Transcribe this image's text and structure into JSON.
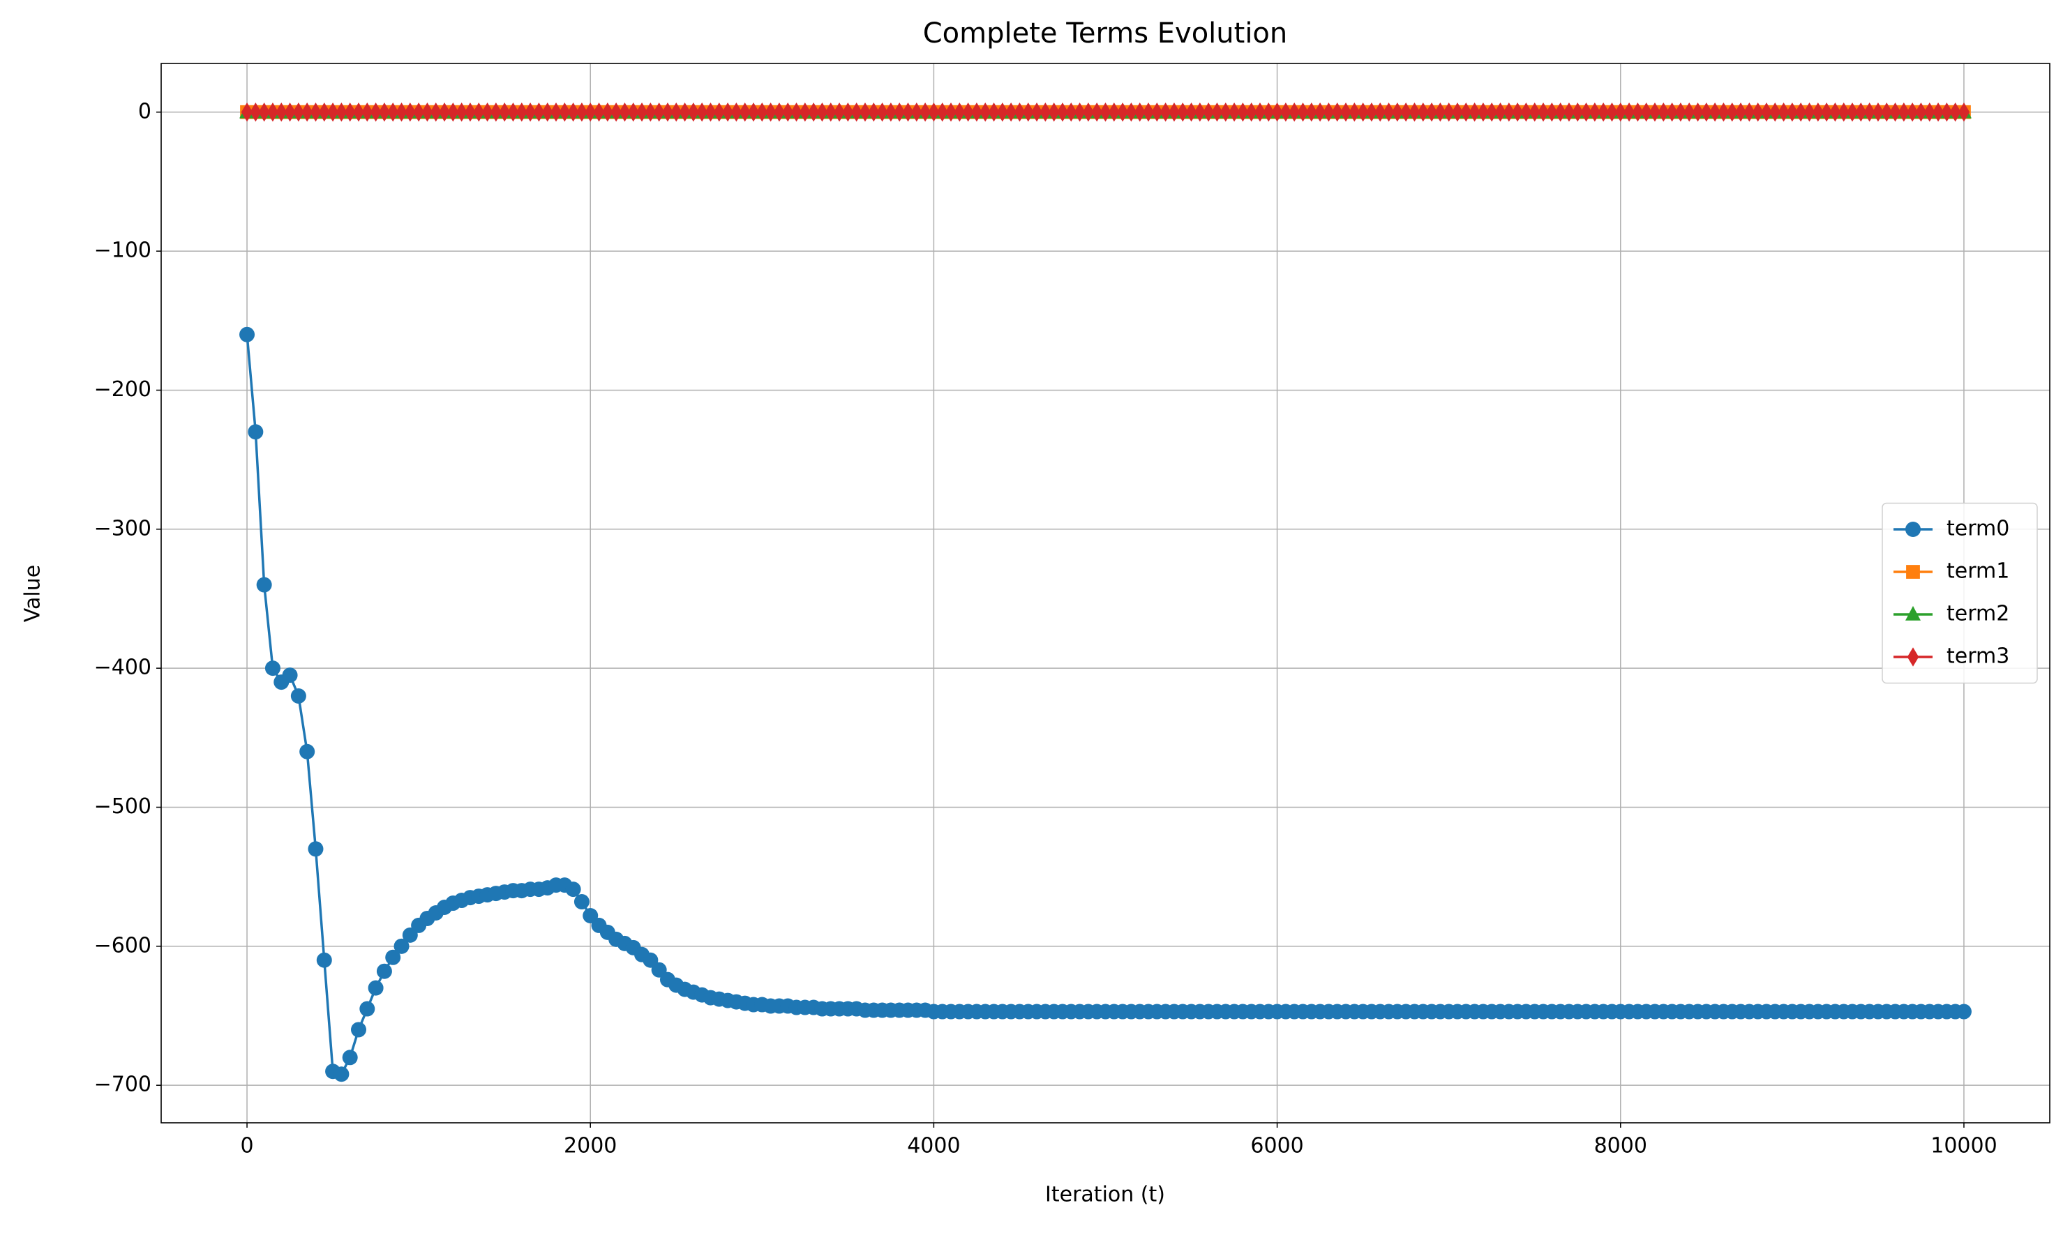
{
  "chart_data": {
    "type": "line",
    "title": "Complete Terms Evolution",
    "xlabel": "Iteration (t)",
    "ylabel": "Value",
    "grid": true,
    "legend": "center right",
    "xlim": [
      -500,
      10500
    ],
    "ylim": [
      -727,
      35
    ],
    "xticks": [
      0,
      2000,
      4000,
      6000,
      8000,
      10000
    ],
    "yticks": [
      {
        "value": -700,
        "label": "−700"
      },
      {
        "value": -600,
        "label": "−600"
      },
      {
        "value": -500,
        "label": "−500"
      },
      {
        "value": -400,
        "label": "−400"
      },
      {
        "value": -300,
        "label": "−300"
      },
      {
        "value": -200,
        "label": "−200"
      },
      {
        "value": -100,
        "label": "−100"
      },
      0
    ],
    "x": [
      0,
      50,
      100,
      150,
      200,
      250,
      300,
      350,
      400,
      450,
      500,
      550,
      600,
      650,
      700,
      750,
      800,
      850,
      900,
      950,
      1000,
      1050,
      1100,
      1150,
      1200,
      1250,
      1300,
      1350,
      1400,
      1450,
      1500,
      1550,
      1600,
      1650,
      1700,
      1750,
      1800,
      1850,
      1900,
      1950,
      2000,
      2050,
      2100,
      2150,
      2200,
      2250,
      2300,
      2350,
      2400,
      2450,
      2500,
      2550,
      2600,
      2650,
      2700,
      2750,
      2800,
      2850,
      2900,
      2950,
      3000,
      3050,
      3100,
      3150,
      3200,
      3250,
      3300,
      3350,
      3400,
      3450,
      3500,
      3550,
      3600,
      3650,
      3700,
      3750,
      3800,
      3850,
      3900,
      3950,
      4000,
      4050,
      4100,
      4150,
      4200,
      4250,
      4300,
      4350,
      4400,
      4450,
      4500,
      4550,
      4600,
      4650,
      4700,
      4750,
      4800,
      4850,
      4900,
      4950,
      5000,
      5050,
      5100,
      5150,
      5200,
      5250,
      5300,
      5350,
      5400,
      5450,
      5500,
      5550,
      5600,
      5650,
      5700,
      5750,
      5800,
      5850,
      5900,
      5950,
      6000,
      6050,
      6100,
      6150,
      6200,
      6250,
      6300,
      6350,
      6400,
      6450,
      6500,
      6550,
      6600,
      6650,
      6700,
      6750,
      6800,
      6850,
      6900,
      6950,
      7000,
      7050,
      7100,
      7150,
      7200,
      7250,
      7300,
      7350,
      7400,
      7450,
      7500,
      7550,
      7600,
      7650,
      7700,
      7750,
      7800,
      7850,
      7900,
      7950,
      8000,
      8050,
      8100,
      8150,
      8200,
      8250,
      8300,
      8350,
      8400,
      8450,
      8500,
      8550,
      8600,
      8650,
      8700,
      8750,
      8800,
      8850,
      8900,
      8950,
      9000,
      9050,
      9100,
      9150,
      9200,
      9250,
      9300,
      9350,
      9400,
      9450,
      9500,
      9550,
      9600,
      9650,
      9700,
      9750,
      9800,
      9850,
      9900,
      9950,
      10000
    ],
    "series": [
      {
        "name": "term0",
        "color": "#1f77b4",
        "marker": "circle",
        "values": [
          -160,
          -230,
          -340,
          -400,
          -410,
          -405,
          -420,
          -460,
          -530,
          -610,
          -690,
          -692,
          -680,
          -660,
          -645,
          -630,
          -618,
          -608,
          -600,
          -592,
          -585,
          -580,
          -576,
          -572,
          -569,
          -567,
          -565,
          -564,
          -563,
          -562,
          -561,
          -560,
          -560,
          -559,
          -559,
          -558,
          -556,
          -556,
          -559,
          -568,
          -578,
          -585,
          -590,
          -595,
          -598,
          -601,
          -606,
          -610,
          -617,
          -624,
          -628,
          -631,
          -633,
          -635,
          -637,
          -638,
          -639,
          -640,
          -641,
          -642,
          -642,
          -643,
          -643,
          -643,
          -644,
          -644,
          -644,
          -645,
          -645,
          -645,
          -645,
          -645,
          -646,
          -646,
          -646,
          -646,
          -646,
          -646,
          -646,
          -646,
          -647,
          -647,
          -647,
          -647,
          -647,
          -647,
          -647,
          -647,
          -647,
          -647,
          -647,
          -647,
          -647,
          -647,
          -647,
          -647,
          -647,
          -647,
          -647,
          -647,
          -647,
          -647,
          -647,
          -647,
          -647,
          -647,
          -647,
          -647,
          -647,
          -647,
          -647,
          -647,
          -647,
          -647,
          -647,
          -647,
          -647,
          -647,
          -647,
          -647,
          -647,
          -647,
          -647,
          -647,
          -647,
          -647,
          -647,
          -647,
          -647,
          -647,
          -647,
          -647,
          -647,
          -647,
          -647,
          -647,
          -647,
          -647,
          -647,
          -647,
          -647,
          -647,
          -647,
          -647,
          -647,
          -647,
          -647,
          -647,
          -647,
          -647,
          -647,
          -647,
          -647,
          -647,
          -647,
          -647,
          -647,
          -647,
          -647,
          -647,
          -647,
          -647,
          -647,
          -647,
          -647,
          -647,
          -647,
          -647,
          -647,
          -647,
          -647,
          -647,
          -647,
          -647,
          -647,
          -647,
          -647,
          -647,
          -647,
          -647,
          -647,
          -647,
          -647,
          -647,
          -647,
          -647,
          -647,
          -647,
          -647,
          -647,
          -647,
          -647,
          -647,
          -647,
          -647,
          -647,
          -647,
          -647,
          -647,
          -647,
          -647
        ]
      },
      {
        "name": "term1",
        "color": "#ff7f0e",
        "marker": "square",
        "values": [
          0,
          0,
          0,
          0,
          0,
          0,
          0,
          0,
          0,
          0,
          0,
          0,
          0,
          0,
          0,
          0,
          0,
          0,
          0,
          0,
          0,
          0,
          0,
          0,
          0,
          0,
          0,
          0,
          0,
          0,
          0,
          0,
          0,
          0,
          0,
          0,
          0,
          0,
          0,
          0,
          0,
          0,
          0,
          0,
          0,
          0,
          0,
          0,
          0,
          0,
          0,
          0,
          0,
          0,
          0,
          0,
          0,
          0,
          0,
          0,
          0,
          0,
          0,
          0,
          0,
          0,
          0,
          0,
          0,
          0,
          0,
          0,
          0,
          0,
          0,
          0,
          0,
          0,
          0,
          0,
          0,
          0,
          0,
          0,
          0,
          0,
          0,
          0,
          0,
          0,
          0,
          0,
          0,
          0,
          0,
          0,
          0,
          0,
          0,
          0,
          0,
          0,
          0,
          0,
          0,
          0,
          0,
          0,
          0,
          0,
          0,
          0,
          0,
          0,
          0,
          0,
          0,
          0,
          0,
          0,
          0,
          0,
          0,
          0,
          0,
          0,
          0,
          0,
          0,
          0,
          0,
          0,
          0,
          0,
          0,
          0,
          0,
          0,
          0,
          0,
          0,
          0,
          0,
          0,
          0,
          0,
          0,
          0,
          0,
          0,
          0,
          0,
          0,
          0,
          0,
          0,
          0,
          0,
          0,
          0,
          0,
          0,
          0,
          0,
          0,
          0,
          0,
          0,
          0,
          0,
          0,
          0,
          0,
          0,
          0,
          0,
          0,
          0,
          0,
          0,
          0,
          0,
          0,
          0,
          0,
          0,
          0,
          0,
          0,
          0,
          0,
          0,
          0,
          0,
          0,
          0,
          0,
          0,
          0,
          0,
          0
        ]
      },
      {
        "name": "term2",
        "color": "#2ca02c",
        "marker": "triangle",
        "values": [
          0,
          0,
          0,
          0,
          0,
          0,
          0,
          0,
          0,
          0,
          0,
          0,
          0,
          0,
          0,
          0,
          0,
          0,
          0,
          0,
          0,
          0,
          0,
          0,
          0,
          0,
          0,
          0,
          0,
          0,
          0,
          0,
          0,
          0,
          0,
          0,
          0,
          0,
          0,
          0,
          0,
          0,
          0,
          0,
          0,
          0,
          0,
          0,
          0,
          0,
          0,
          0,
          0,
          0,
          0,
          0,
          0,
          0,
          0,
          0,
          0,
          0,
          0,
          0,
          0,
          0,
          0,
          0,
          0,
          0,
          0,
          0,
          0,
          0,
          0,
          0,
          0,
          0,
          0,
          0,
          0,
          0,
          0,
          0,
          0,
          0,
          0,
          0,
          0,
          0,
          0,
          0,
          0,
          0,
          0,
          0,
          0,
          0,
          0,
          0,
          0,
          0,
          0,
          0,
          0,
          0,
          0,
          0,
          0,
          0,
          0,
          0,
          0,
          0,
          0,
          0,
          0,
          0,
          0,
          0,
          0,
          0,
          0,
          0,
          0,
          0,
          0,
          0,
          0,
          0,
          0,
          0,
          0,
          0,
          0,
          0,
          0,
          0,
          0,
          0,
          0,
          0,
          0,
          0,
          0,
          0,
          0,
          0,
          0,
          0,
          0,
          0,
          0,
          0,
          0,
          0,
          0,
          0,
          0,
          0,
          0,
          0,
          0,
          0,
          0,
          0,
          0,
          0,
          0,
          0,
          0,
          0,
          0,
          0,
          0,
          0,
          0,
          0,
          0,
          0,
          0,
          0,
          0,
          0,
          0,
          0,
          0,
          0,
          0,
          0,
          0,
          0,
          0,
          0,
          0,
          0,
          0,
          0,
          0,
          0,
          0
        ]
      },
      {
        "name": "term3",
        "color": "#d62728",
        "marker": "diamond",
        "values": [
          0,
          0,
          0,
          0,
          0,
          0,
          0,
          0,
          0,
          0,
          0,
          0,
          0,
          0,
          0,
          0,
          0,
          0,
          0,
          0,
          0,
          0,
          0,
          0,
          0,
          0,
          0,
          0,
          0,
          0,
          0,
          0,
          0,
          0,
          0,
          0,
          0,
          0,
          0,
          0,
          0,
          0,
          0,
          0,
          0,
          0,
          0,
          0,
          0,
          0,
          0,
          0,
          0,
          0,
          0,
          0,
          0,
          0,
          0,
          0,
          0,
          0,
          0,
          0,
          0,
          0,
          0,
          0,
          0,
          0,
          0,
          0,
          0,
          0,
          0,
          0,
          0,
          0,
          0,
          0,
          0,
          0,
          0,
          0,
          0,
          0,
          0,
          0,
          0,
          0,
          0,
          0,
          0,
          0,
          0,
          0,
          0,
          0,
          0,
          0,
          0,
          0,
          0,
          0,
          0,
          0,
          0,
          0,
          0,
          0,
          0,
          0,
          0,
          0,
          0,
          0,
          0,
          0,
          0,
          0,
          0,
          0,
          0,
          0,
          0,
          0,
          0,
          0,
          0,
          0,
          0,
          0,
          0,
          0,
          0,
          0,
          0,
          0,
          0,
          0,
          0,
          0,
          0,
          0,
          0,
          0,
          0,
          0,
          0,
          0,
          0,
          0,
          0,
          0,
          0,
          0,
          0,
          0,
          0,
          0,
          0,
          0,
          0,
          0,
          0,
          0,
          0,
          0,
          0,
          0,
          0,
          0,
          0,
          0,
          0,
          0,
          0,
          0,
          0,
          0,
          0,
          0,
          0,
          0,
          0,
          0,
          0,
          0,
          0,
          0,
          0,
          0,
          0,
          0,
          0,
          0,
          0,
          0,
          0,
          0,
          0
        ]
      }
    ]
  }
}
